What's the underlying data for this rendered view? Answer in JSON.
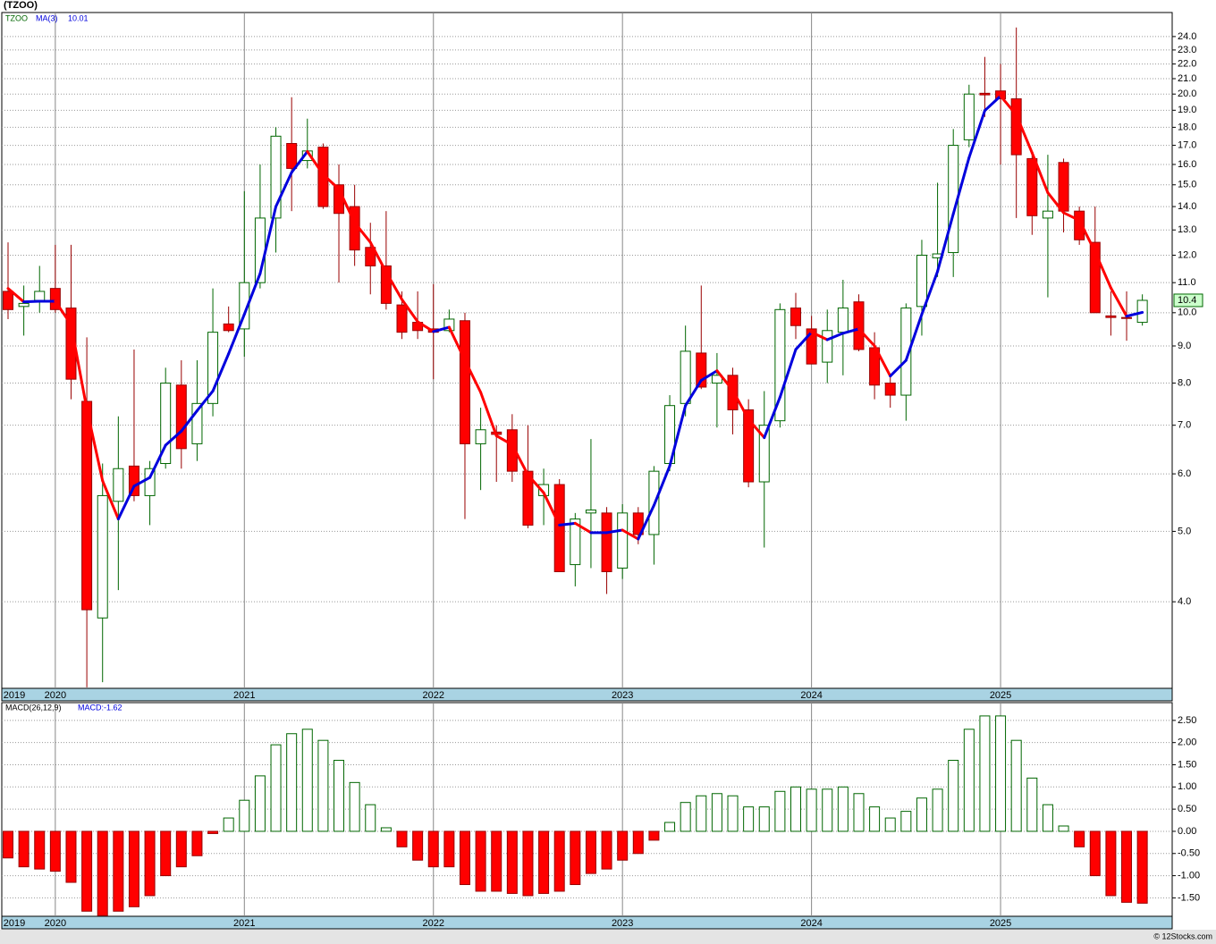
{
  "chart_data": {
    "type": "candlestick",
    "title": "(TZOO)",
    "symbol": "TZOO",
    "ma_label": "MA(3)",
    "ma_value_label": "10.01",
    "last_label": "10.4",
    "credit": "© 12Stocks.com",
    "log_scale": true,
    "grid": true,
    "up_color": "#006600",
    "down_color": "#ff0000",
    "ma_up_color": "#0000dd",
    "ma_down_color": "#ff0000",
    "categories": [
      "2019",
      null,
      null,
      "2020",
      null,
      null,
      null,
      null,
      null,
      null,
      null,
      null,
      null,
      null,
      null,
      "2021",
      null,
      null,
      null,
      null,
      null,
      null,
      null,
      null,
      null,
      null,
      null,
      "2022",
      null,
      null,
      null,
      null,
      null,
      null,
      null,
      null,
      null,
      null,
      null,
      "2023",
      null,
      null,
      null,
      null,
      null,
      null,
      null,
      null,
      null,
      null,
      null,
      "2024",
      null,
      null,
      null,
      null,
      null,
      null,
      null,
      null,
      null,
      null,
      null,
      "2025",
      null,
      null,
      null,
      null,
      null,
      null,
      null,
      null,
      null
    ],
    "open": [
      10.7,
      10.2,
      10.4,
      10.8,
      10.15,
      7.55,
      3.8,
      5.5,
      6.15,
      5.6,
      6.2,
      7.95,
      6.6,
      7.5,
      9.65,
      9.5,
      11.0,
      13.5,
      17.1,
      16.2,
      16.9,
      15.0,
      14.0,
      12.3,
      11.6,
      10.25,
      9.7,
      9.5,
      9.45,
      9.75,
      6.6,
      6.85,
      6.9,
      6.05,
      5.6,
      5.8,
      4.5,
      5.3,
      5.3,
      4.45,
      5.3,
      4.95,
      6.2,
      7.5,
      8.8,
      8.0,
      8.2,
      7.35,
      5.85,
      7.1,
      10.15,
      9.5,
      8.55,
      9.4,
      10.35,
      8.95,
      8.0,
      7.7,
      10.2,
      11.9,
      12.1,
      17.3,
      20.05,
      20.2,
      19.7,
      16.3,
      13.5,
      16.1,
      13.8,
      12.5,
      9.9,
      9.85,
      9.7
    ],
    "high": [
      12.5,
      10.9,
      11.6,
      12.4,
      12.4,
      9.25,
      6.2,
      7.2,
      8.9,
      6.25,
      8.4,
      8.6,
      8.6,
      10.8,
      10.2,
      14.7,
      16.0,
      18.0,
      19.8,
      18.5,
      17.1,
      16.0,
      15.0,
      13.3,
      13.8,
      10.7,
      10.7,
      10.95,
      10.1,
      10.0,
      7.4,
      7.0,
      7.25,
      7.0,
      6.1,
      5.9,
      5.3,
      6.7,
      5.4,
      5.45,
      5.4,
      6.15,
      7.7,
      9.6,
      10.9,
      8.8,
      8.4,
      7.6,
      7.8,
      10.3,
      10.65,
      9.9,
      10.1,
      11.1,
      10.6,
      9.4,
      8.2,
      10.3,
      12.6,
      15.1,
      17.9,
      20.6,
      22.5,
      22.0,
      24.7,
      16.5,
      16.5,
      16.3,
      14.0,
      14.0,
      10.7,
      10.7,
      10.6
    ],
    "low": [
      9.8,
      9.3,
      10.0,
      10.0,
      7.6,
      3.05,
      3.1,
      4.15,
      5.5,
      5.1,
      6.1,
      6.1,
      6.25,
      7.2,
      9.4,
      8.7,
      10.8,
      12.1,
      13.8,
      15.8,
      13.9,
      11.0,
      11.6,
      10.6,
      10.1,
      9.2,
      9.2,
      8.1,
      9.4,
      5.2,
      5.7,
      5.85,
      5.85,
      5.05,
      5.1,
      4.4,
      4.2,
      4.45,
      4.1,
      4.3,
      4.8,
      4.5,
      6.05,
      7.2,
      7.85,
      6.95,
      6.8,
      5.75,
      4.75,
      6.95,
      9.2,
      8.5,
      8.0,
      8.2,
      8.85,
      7.6,
      7.4,
      7.1,
      9.3,
      11.2,
      11.2,
      16.9,
      18.6,
      16.0,
      13.5,
      12.8,
      10.5,
      12.9,
      12.4,
      10.0,
      9.3,
      9.15,
      9.6
    ],
    "close": [
      10.1,
      10.3,
      10.7,
      10.1,
      8.1,
      3.9,
      5.6,
      6.1,
      5.6,
      6.1,
      8.0,
      6.5,
      7.5,
      9.4,
      9.45,
      11.0,
      13.5,
      17.5,
      15.8,
      16.7,
      14.0,
      13.7,
      12.2,
      11.6,
      10.3,
      9.4,
      9.45,
      9.4,
      9.8,
      6.6,
      6.9,
      6.8,
      6.05,
      5.1,
      5.8,
      4.4,
      5.2,
      5.35,
      4.4,
      5.3,
      4.95,
      6.05,
      7.45,
      8.85,
      7.9,
      8.2,
      7.35,
      5.85,
      7.0,
      10.1,
      9.6,
      8.5,
      9.45,
      10.15,
      8.9,
      7.95,
      7.7,
      10.15,
      12.0,
      12.05,
      17.0,
      20.0,
      19.95,
      19.7,
      16.5,
      13.6,
      13.8,
      13.8,
      12.6,
      10.0,
      9.85,
      9.82,
      10.4
    ],
    "ma": [
      10.8,
      10.35,
      10.37,
      10.37,
      9.63,
      7.37,
      5.87,
      5.2,
      5.77,
      5.93,
      6.57,
      6.87,
      7.33,
      7.8,
      8.78,
      9.95,
      11.32,
      14.0,
      15.6,
      16.67,
      15.5,
      14.8,
      13.3,
      12.5,
      11.37,
      10.43,
      9.72,
      9.42,
      9.55,
      8.6,
      7.77,
      6.77,
      6.58,
      5.98,
      5.65,
      5.1,
      5.13,
      4.98,
      4.98,
      5.02,
      4.88,
      5.43,
      6.15,
      7.45,
      8.07,
      8.32,
      7.82,
      7.13,
      6.73,
      7.65,
      8.9,
      9.4,
      9.18,
      9.37,
      9.5,
      9.0,
      8.18,
      8.6,
      9.95,
      11.4,
      13.68,
      16.35,
      18.98,
      19.88,
      18.72,
      16.6,
      14.63,
      13.73,
      13.4,
      12.13,
      10.82,
      9.89,
      10.01
    ],
    "ylim": [
      3.04,
      25.9
    ],
    "yticks": [
      {
        "value": 4,
        "label": "4.0"
      },
      {
        "value": 5,
        "label": "5.0"
      },
      {
        "value": 6,
        "label": "6.0"
      },
      {
        "value": 7,
        "label": "7.0"
      },
      {
        "value": 8,
        "label": "8.0"
      },
      {
        "value": 9,
        "label": "9.0"
      },
      {
        "value": 10,
        "label": "10.0"
      },
      {
        "value": 11,
        "label": "11.0"
      },
      {
        "value": 12,
        "label": "12.0"
      },
      {
        "value": 13,
        "label": "13.0"
      },
      {
        "value": 14,
        "label": "14.0"
      },
      {
        "value": 15,
        "label": "15.0"
      },
      {
        "value": 16,
        "label": "16.0"
      },
      {
        "value": 17,
        "label": "17.0"
      },
      {
        "value": 18,
        "label": "18.0"
      },
      {
        "value": 19,
        "label": "19.0"
      },
      {
        "value": 20,
        "label": "20.0"
      },
      {
        "value": 21,
        "label": "21.0"
      },
      {
        "value": 22,
        "label": "22.0"
      },
      {
        "value": 23,
        "label": "23.0"
      },
      {
        "value": 24,
        "label": "24.0"
      }
    ],
    "macd": {
      "type": "bar",
      "label": "MACD(26,12,9)",
      "value_label": "MACD:-1.62",
      "up_color": "#006600",
      "down_color": "#ff0000",
      "values": [
        -0.6,
        -0.8,
        -0.85,
        -0.9,
        -1.15,
        -1.8,
        -1.9,
        -1.8,
        -1.7,
        -1.45,
        -1.0,
        -0.8,
        -0.55,
        -0.05,
        0.3,
        0.7,
        1.25,
        1.95,
        2.2,
        2.3,
        2.05,
        1.6,
        1.1,
        0.6,
        0.08,
        -0.35,
        -0.65,
        -0.8,
        -0.8,
        -1.2,
        -1.35,
        -1.35,
        -1.4,
        -1.45,
        -1.4,
        -1.35,
        -1.2,
        -0.95,
        -0.85,
        -0.65,
        -0.5,
        -0.2,
        0.2,
        0.65,
        0.8,
        0.85,
        0.8,
        0.55,
        0.55,
        0.9,
        1.0,
        0.95,
        0.95,
        1.0,
        0.85,
        0.55,
        0.3,
        0.45,
        0.75,
        0.95,
        1.6,
        2.3,
        2.6,
        2.6,
        2.05,
        1.2,
        0.6,
        0.12,
        -0.35,
        -1.0,
        -1.45,
        -1.6,
        -1.62
      ],
      "ylim": [
        -1.915,
        2.9
      ],
      "yticks": [
        {
          "value": 2.5,
          "label": "2.50"
        },
        {
          "value": 2,
          "label": "2.00"
        },
        {
          "value": 1.5,
          "label": "1.50"
        },
        {
          "value": 1,
          "label": "1.00"
        },
        {
          "value": 0.5,
          "label": "0.50"
        },
        {
          "value": 0,
          "label": "0.00"
        },
        {
          "value": -0.5,
          "label": "-0.50"
        },
        {
          "value": -1,
          "label": "-1.00"
        },
        {
          "value": -1.5,
          "label": "-1.50"
        }
      ]
    }
  }
}
